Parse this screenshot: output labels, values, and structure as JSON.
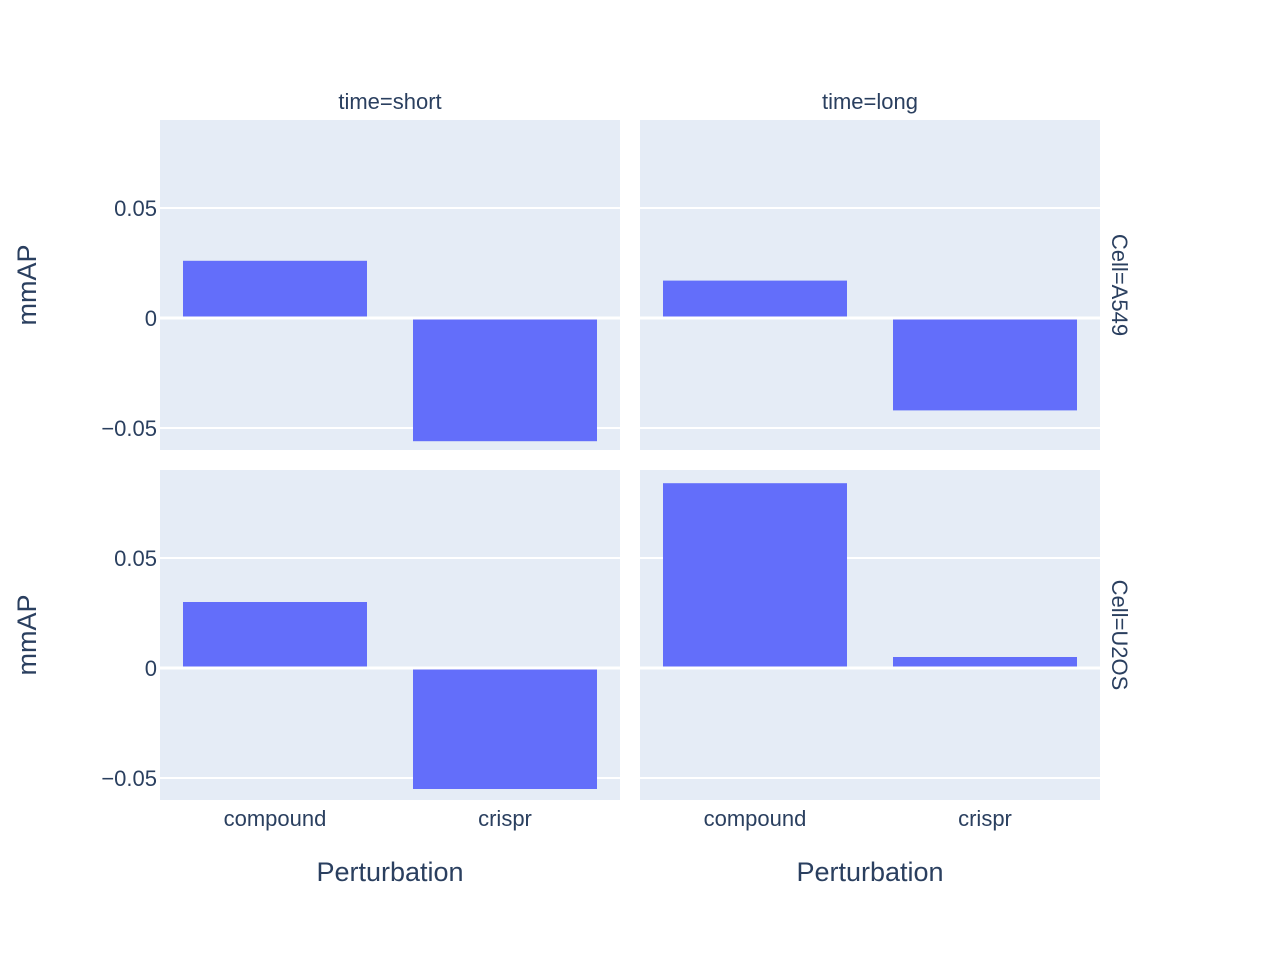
{
  "chart_data": {
    "type": "bar",
    "xlabel": "Perturbation",
    "ylabel": "mmAP",
    "categories": [
      "compound",
      "crispr"
    ],
    "ylim": [
      -0.06,
      0.09
    ],
    "yticks": [
      -0.05,
      0,
      0.05
    ],
    "ytick_labels": [
      "−0.05",
      "0",
      "0.05"
    ],
    "grid": true,
    "bar_color": "#636efa",
    "plot_bg": "#e5ecf6",
    "facet_cols": [
      "time=short",
      "time=long"
    ],
    "facet_rows": [
      "Cell=A549",
      "Cell=U2OS"
    ],
    "panels": [
      {
        "row": "Cell=A549",
        "col": "time=short",
        "values": [
          0.026,
          -0.056
        ]
      },
      {
        "row": "Cell=A549",
        "col": "time=long",
        "values": [
          0.017,
          -0.042
        ]
      },
      {
        "row": "Cell=U2OS",
        "col": "time=short",
        "values": [
          0.03,
          -0.055
        ]
      },
      {
        "row": "Cell=U2OS",
        "col": "time=long",
        "values": [
          0.084,
          0.005
        ]
      }
    ]
  }
}
